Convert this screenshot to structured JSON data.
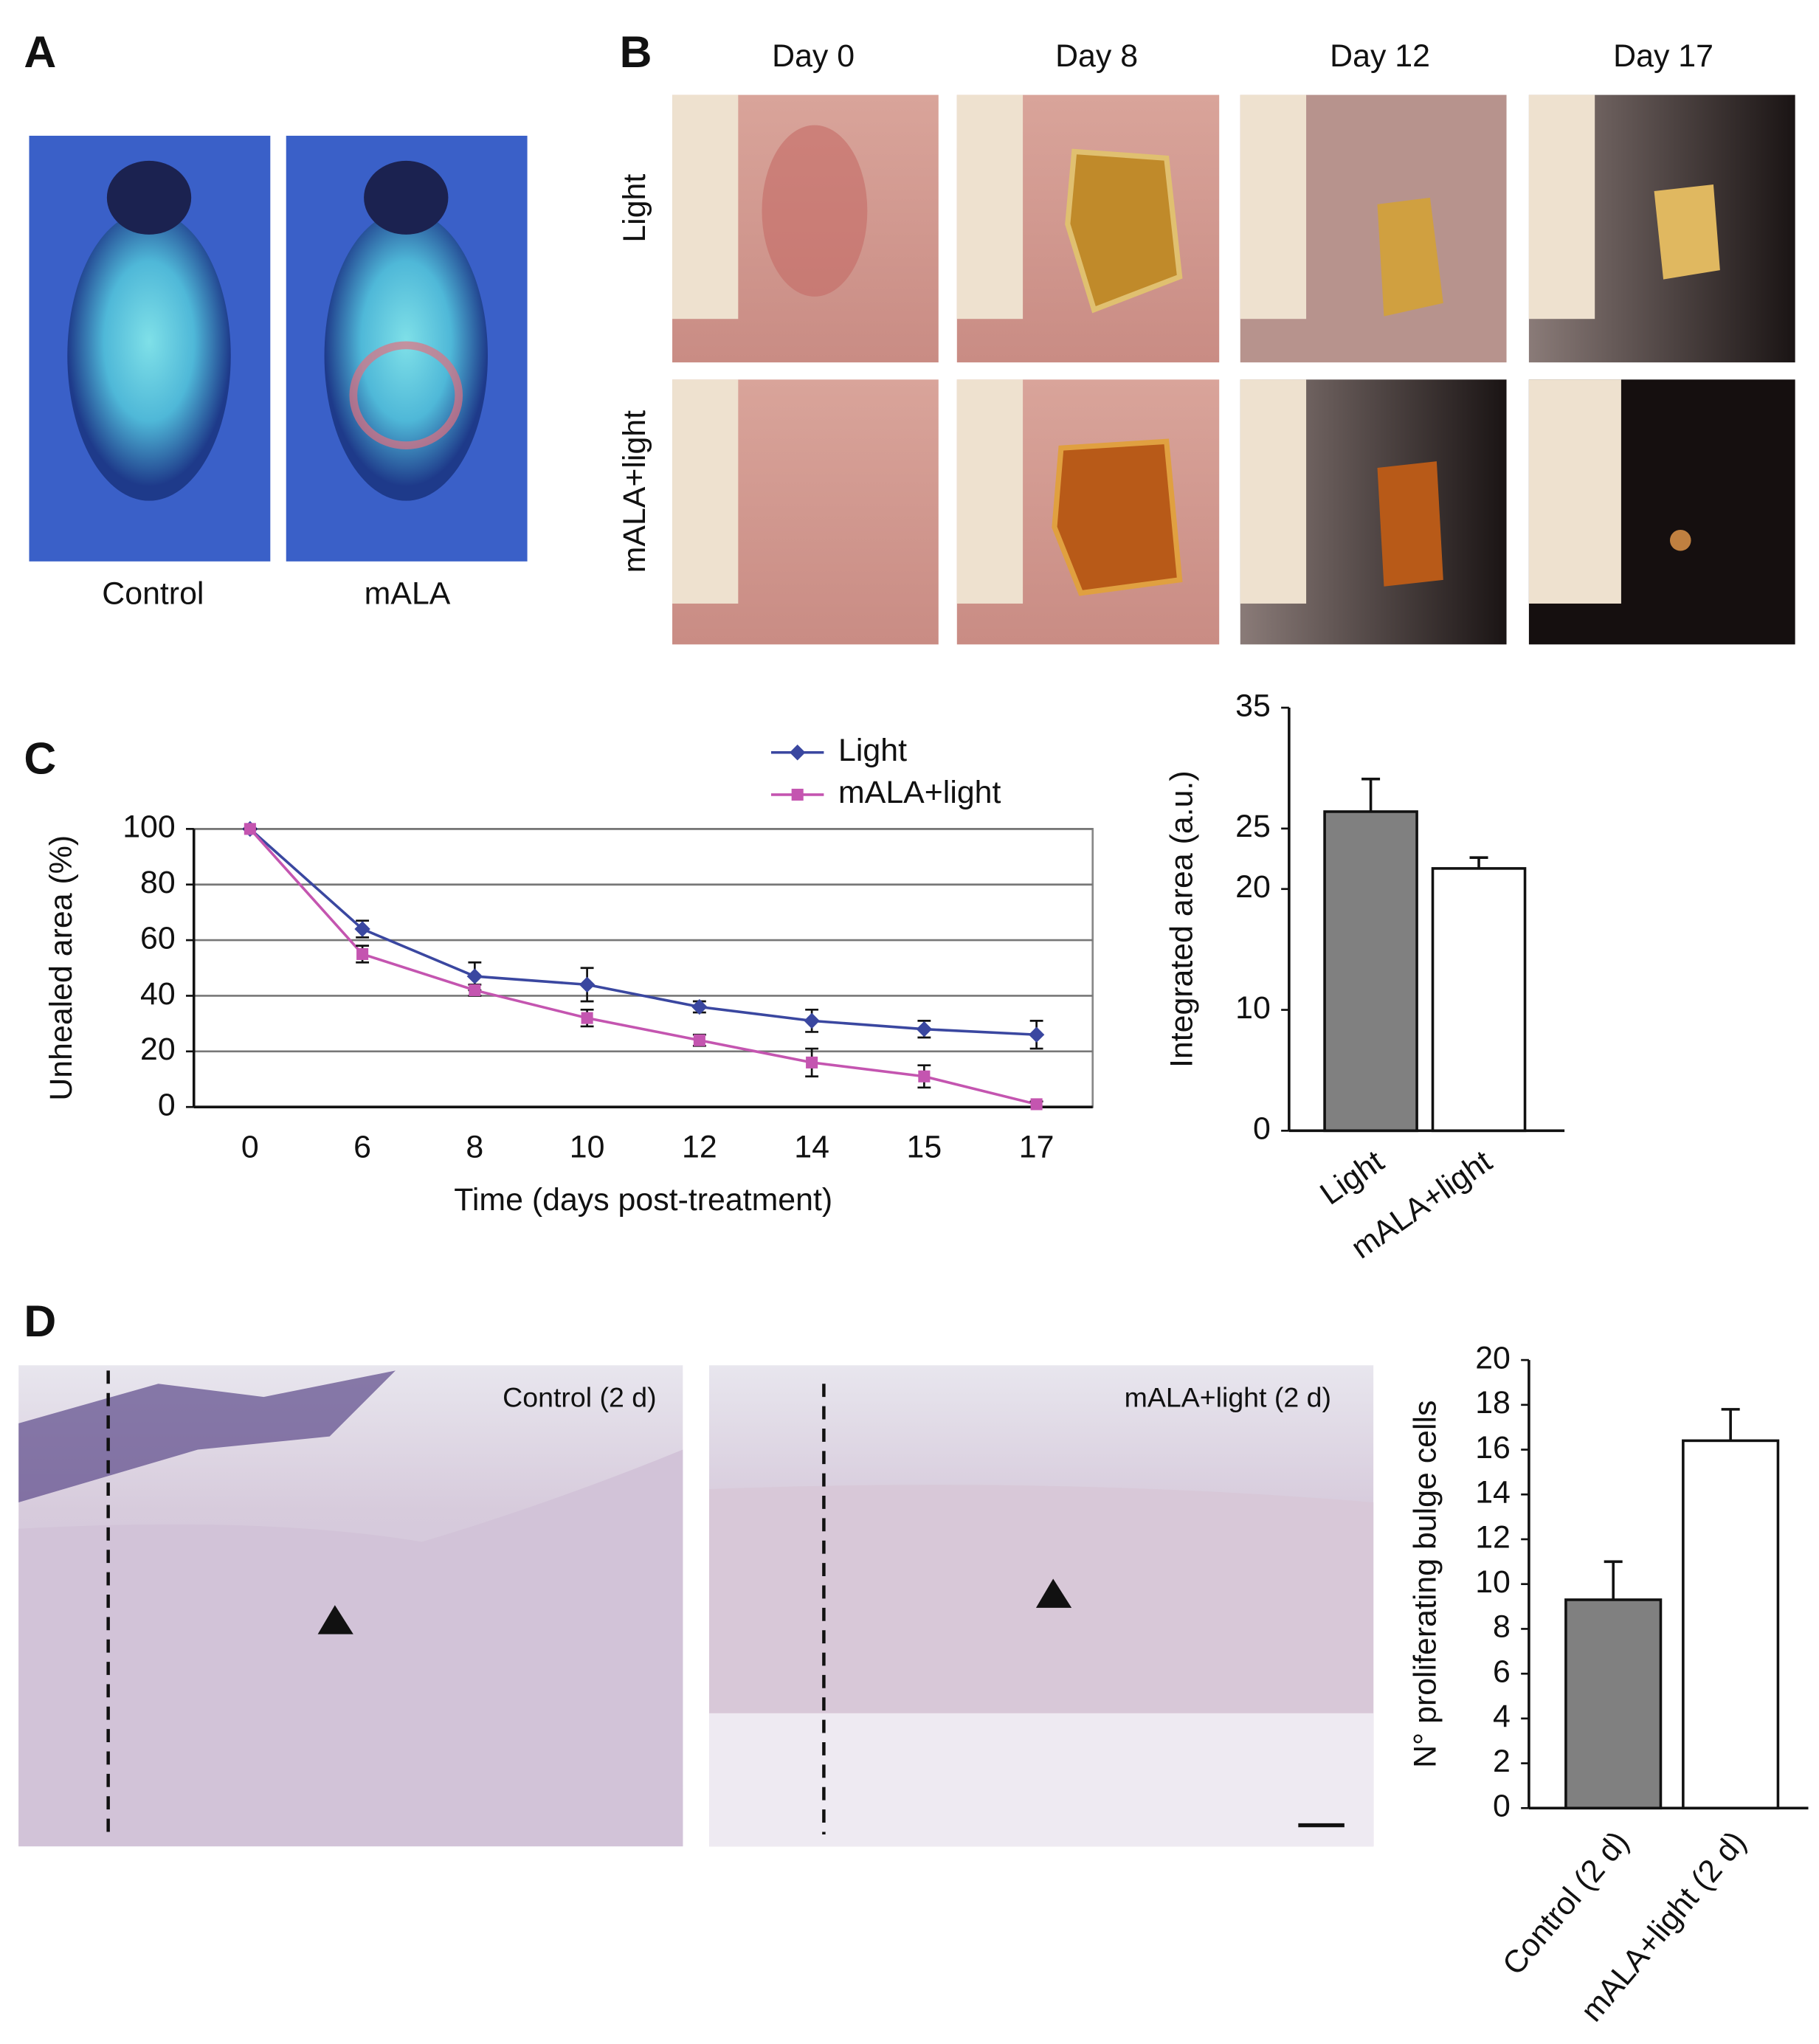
{
  "panels": {
    "A": {
      "label": "A",
      "captions": [
        "Control",
        "mALA"
      ]
    },
    "B": {
      "label": "B",
      "columns": [
        "Day 0",
        "Day 8",
        "Day 12",
        "Day 17"
      ],
      "rows": [
        "Light",
        "mALA+light"
      ]
    },
    "C": {
      "label": "C"
    },
    "D": {
      "label": "D",
      "captions": [
        "Control (2 d)",
        "mALA+light (2 d)"
      ]
    }
  },
  "chart_data": [
    {
      "type": "line",
      "x_label": "Time (days post-treatment)",
      "y_label": "Unhealed area (%)",
      "categories": [
        0,
        6,
        8,
        10,
        12,
        14,
        15,
        17
      ],
      "series": [
        {
          "name": "Light",
          "color": "#3a47a0",
          "values": [
            100,
            64,
            47,
            44,
            36,
            31,
            28,
            26
          ],
          "errors": [
            0,
            3,
            5,
            6,
            2,
            4,
            3,
            5
          ]
        },
        {
          "name": "mALA+light",
          "color": "#c455b0",
          "values": [
            100,
            55,
            42,
            32,
            24,
            16,
            11,
            1
          ],
          "errors": [
            0,
            3,
            2,
            3,
            2,
            5,
            4,
            1
          ]
        }
      ],
      "ylim": [
        0,
        100
      ],
      "yticks": [
        0,
        20,
        40,
        60,
        80,
        100
      ],
      "grid": true
    },
    {
      "type": "bar",
      "y_label": "Integrated area (a.u.)",
      "categories": [
        "Light",
        "mALA+light"
      ],
      "values": [
        26.4,
        21.7
      ],
      "errors": [
        2.7,
        0.9
      ],
      "colors": [
        "#808080",
        "#ffffff"
      ],
      "ylim": [
        0,
        35
      ],
      "yticks": [
        0,
        10,
        20,
        25,
        35
      ]
    },
    {
      "type": "bar",
      "y_label": "N° proliferating bulge cells",
      "categories": [
        "Control (2 d)",
        "mALA+light (2 d)"
      ],
      "values": [
        9.3,
        16.4
      ],
      "errors": [
        1.7,
        1.4
      ],
      "colors": [
        "#808080",
        "#ffffff"
      ],
      "ylim": [
        0,
        20
      ],
      "yticks": [
        0,
        2,
        4,
        6,
        8,
        10,
        12,
        14,
        16,
        18,
        20
      ]
    }
  ]
}
